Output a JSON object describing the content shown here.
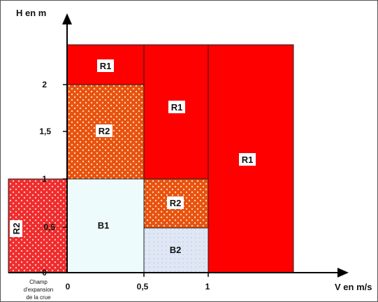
{
  "axes": {
    "y_title": "H en m",
    "x_title": "V en m/s",
    "y_ticks": [
      "2",
      "1,5",
      "1",
      "0,5",
      "0"
    ],
    "x_ticks": [
      "0",
      "0,5",
      "1"
    ]
  },
  "expansion_label": {
    "line1": "Champ",
    "line2": "d'expansion",
    "line3": "de la crue"
  },
  "zones": {
    "r1_top_left": "R1",
    "r2_upper_left": "R2",
    "r1_middle": "R1",
    "r1_right": "R1",
    "b1": "B1",
    "r2_mid": "R2",
    "b2": "B2",
    "r2_expansion": "R2"
  },
  "colors": {
    "red": "#ff0000",
    "orange_hatched": "#e8520f",
    "light_blue": "#eefbfd",
    "b2_blue": "#dfe7f5",
    "hatched_red": "#ef2c2c"
  }
}
